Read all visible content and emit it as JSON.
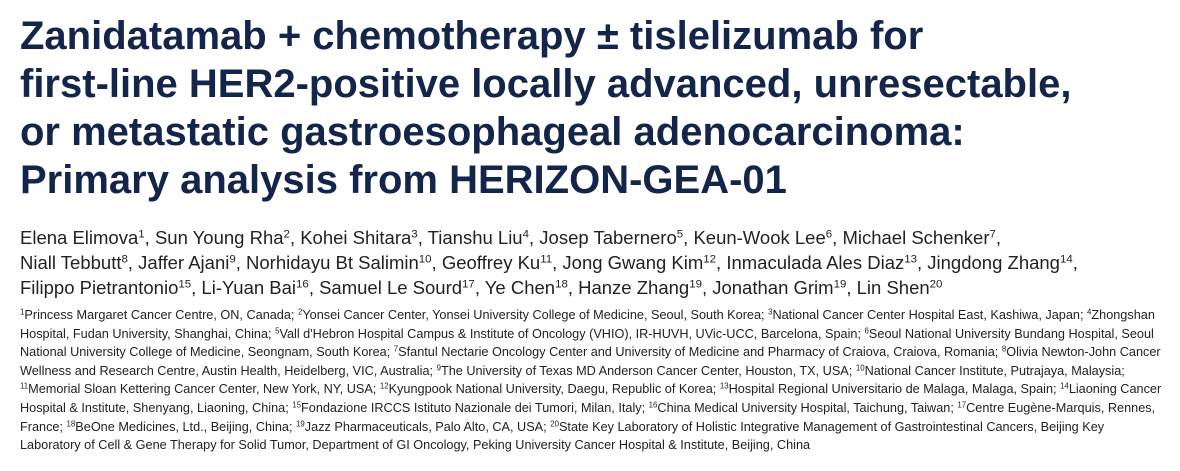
{
  "title": [
    "Zanidatamab + chemotherapy ± tislelizumab for",
    "first-line HER2-positive locally advanced, unresectable,",
    "or metastatic gastroesophageal adenocarcinoma:",
    "Primary analysis from HERIZON-GEA-01"
  ],
  "authors": [
    [
      {
        "name": "Elena Elimova",
        "sup": "1",
        "sep": ","
      },
      {
        "name": "Sun Young Rha",
        "sup": "2",
        "sep": ","
      },
      {
        "name": "Kohei Shitara",
        "sup": "3",
        "sep": ","
      },
      {
        "name": "Tianshu Liu",
        "sup": "4",
        "sep": ","
      },
      {
        "name": "Josep Tabernero",
        "sup": "5",
        "sep": ","
      },
      {
        "name": "Keun-Wook Lee",
        "sup": "6",
        "sep": ","
      },
      {
        "name": "Michael Schenker",
        "sup": "7",
        "sep": ","
      }
    ],
    [
      {
        "name": "Niall Tebbutt",
        "sup": "8",
        "sep": ","
      },
      {
        "name": "Jaffer Ajani",
        "sup": "9",
        "sep": ","
      },
      {
        "name": "Norhidayu Bt Salimin",
        "sup": "10",
        "sep": ","
      },
      {
        "name": "Geoffrey Ku",
        "sup": "11",
        "sep": ","
      },
      {
        "name": "Jong Gwang Kim",
        "sup": "12",
        "sep": ","
      },
      {
        "name": "Inmaculada Ales Diaz",
        "sup": "13",
        "sep": ","
      },
      {
        "name": "Jingdong Zhang",
        "sup": "14",
        "sep": ","
      }
    ],
    [
      {
        "name": "Filippo Pietrantonio",
        "sup": "15",
        "sep": ","
      },
      {
        "name": "Li-Yuan Bai",
        "sup": "16",
        "sep": ","
      },
      {
        "name": "Samuel Le Sourd",
        "sup": "17",
        "sep": ","
      },
      {
        "name": "Ye Chen",
        "sup": "18",
        "sep": ","
      },
      {
        "name": "Hanze Zhang",
        "sup": "19",
        "sep": ","
      },
      {
        "name": "Jonathan Grim",
        "sup": "19",
        "sep": ","
      },
      {
        "name": "Lin Shen",
        "sup": "20"
      }
    ]
  ],
  "affiliations": [
    {
      "sup": "1",
      "text": "Princess Margaret Cancer Centre, ON, Canada;"
    },
    {
      "sup": "2",
      "text": "Yonsei Cancer Center, Yonsei University College of Medicine, Seoul, South Korea;"
    },
    {
      "sup": "3",
      "text": "National Cancer Center Hospital East, Kashiwa, Japan;"
    },
    {
      "sup": "4",
      "text": "Zhongshan Hospital, Fudan University, Shanghai, China;"
    },
    {
      "sup": "5",
      "text": "Vall d'Hebron Hospital Campus & Institute of Oncology (VHIO), IR-HUVH, UVic-UCC, Barcelona, Spain;"
    },
    {
      "sup": "6",
      "text": "Seoul National University Bundang Hospital, Seoul National University College of Medicine, Seongnam, South Korea;"
    },
    {
      "sup": "7",
      "text": "Sfantul Nectarie Oncology Center and University of Medicine and Pharmacy of Craiova, Craiova, Romania;"
    },
    {
      "sup": "8",
      "text": "Olivia Newton-John Cancer Wellness and Research Centre, Austin Health, Heidelberg, VIC, Australia;"
    },
    {
      "sup": "9",
      "text": "The University of Texas MD Anderson Cancer Center, Houston, TX, USA;"
    },
    {
      "sup": "10",
      "text": "National Cancer Institute, Putrajaya, Malaysia;"
    },
    {
      "sup": "11",
      "text": "Memorial Sloan Kettering Cancer Center, New York, NY, USA;"
    },
    {
      "sup": "12",
      "text": "Kyungpook National University, Daegu, Republic of Korea;"
    },
    {
      "sup": "13",
      "text": "Hospital Regional Universitario de Malaga, Malaga, Spain;"
    },
    {
      "sup": "14",
      "text": "Liaoning Cancer Hospital & Institute, Shenyang, Liaoning, China;"
    },
    {
      "sup": "15",
      "text": "Fondazione IRCCS Istituto Nazionale dei Tumori, Milan, Italy;"
    },
    {
      "sup": "16",
      "text": "China Medical University Hospital, Taichung, Taiwan;"
    },
    {
      "sup": "17",
      "text": "Centre Eugène-Marquis, Rennes, France;"
    },
    {
      "sup": "18",
      "text": "BeOne Medicines, Ltd., Beijing, China;"
    },
    {
      "sup": "19",
      "text": "Jazz Pharmaceuticals, Palo Alto, CA, USA;"
    },
    {
      "sup": "20",
      "text": "State Key Laboratory of Holistic Integrative Management of Gastrointestinal Cancers, Beijing Key Laboratory of Cell & Gene Therapy for Solid Tumor, Department of GI Oncology, Peking University Cancer Hospital & Institute, Beijing, China"
    }
  ]
}
